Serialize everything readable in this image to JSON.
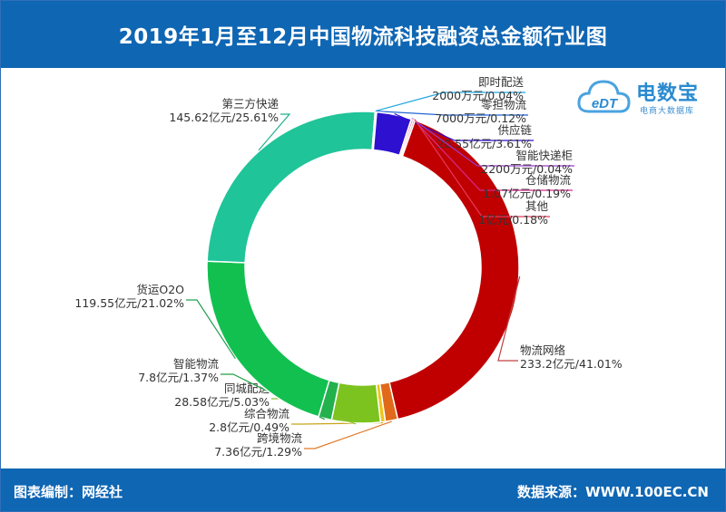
{
  "header": {
    "title": "2019年1月至12月中国物流科技融资总金额行业图"
  },
  "footer": {
    "left": "图表编制：网经社",
    "right": "数据来源：WWW.100EC.CN"
  },
  "logo": {
    "name": "电数宝",
    "subtitle": "电商大数据库",
    "mark": "eDT"
  },
  "chart_data": {
    "type": "pie",
    "unit": "亿元",
    "slices": [
      {
        "name": "物流网络",
        "value": 233.2,
        "value_label": "233.2亿元/41.01%",
        "percent": 41.01,
        "color": "#c00000"
      },
      {
        "name": "跨境物流",
        "value": 7.36,
        "value_label": "7.36亿元/1.29%",
        "percent": 1.29,
        "color": "#e06a1a"
      },
      {
        "name": "综合物流",
        "value": 2.8,
        "value_label": "2.8亿元/0.49%",
        "percent": 0.49,
        "color": "#f0c419"
      },
      {
        "name": "同城配送",
        "value": 28.58,
        "value_label": "28.58亿元/5.03%",
        "percent": 5.03,
        "color": "#7cc31f"
      },
      {
        "name": "智能物流",
        "value": 7.8,
        "value_label": "7.8亿元/1.37%",
        "percent": 1.37,
        "color": "#22b14c"
      },
      {
        "name": "货运O2O",
        "value": 119.55,
        "value_label": "119.55亿元/21.02%",
        "percent": 21.02,
        "color": "#12c050"
      },
      {
        "name": "第三方快递",
        "value": 145.62,
        "value_label": "145.62亿元/25.61%",
        "percent": 25.61,
        "color": "#1fc499"
      },
      {
        "name": "即时配送",
        "value": 0.2,
        "value_label": "2000万元/0.04%",
        "percent": 0.04,
        "color": "#1fa6e0"
      },
      {
        "name": "零担物流",
        "value": 0.7,
        "value_label": "7000万元/0.12%",
        "percent": 0.12,
        "color": "#2266d8"
      },
      {
        "name": "供应链",
        "value": 20.55,
        "value_label": "20.55亿元/3.61%",
        "percent": 3.61,
        "color": "#2e10d0"
      },
      {
        "name": "智能快递柜",
        "value": 0.22,
        "value_label": "2200万元/0.04%",
        "percent": 0.04,
        "color": "#9a3ccc"
      },
      {
        "name": "仓储物流",
        "value": 1.07,
        "value_label": "1.07亿元/0.19%",
        "percent": 0.19,
        "color": "#d62b8c"
      },
      {
        "name": "其他",
        "value": 1.0,
        "value_label": "1亿元/0.18%",
        "percent": 0.18,
        "color": "#e23a5a"
      }
    ]
  }
}
